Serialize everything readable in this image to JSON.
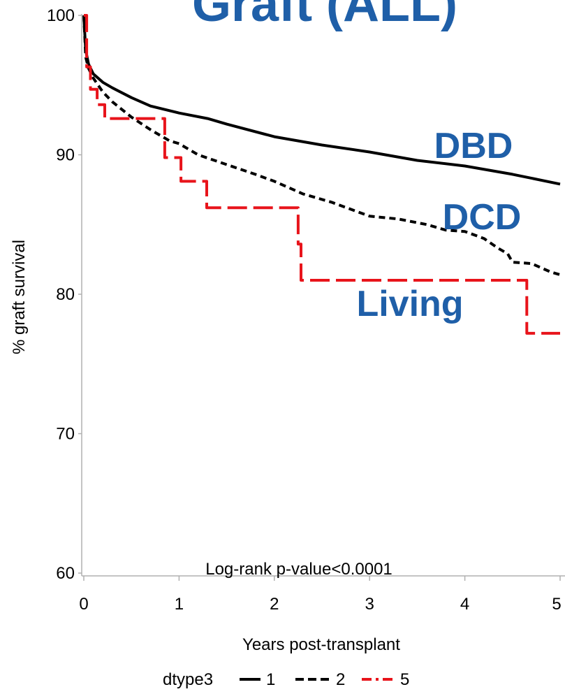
{
  "chart_data": {
    "type": "line",
    "title": "Graft (ALL)",
    "xlabel": "Years post-transplant",
    "ylabel": "% graft survival",
    "xlim": [
      0,
      5
    ],
    "ylim": [
      60,
      100
    ],
    "x_ticks": [
      "0",
      "1",
      "2",
      "3",
      "4",
      "5"
    ],
    "y_ticks": [
      "60",
      "70",
      "80",
      "90",
      "100"
    ],
    "annotation": "Log-rank p-value<0.0001",
    "legend": {
      "title": "dtype3",
      "position": "bottom",
      "items": [
        "1",
        "2",
        "5"
      ]
    },
    "colors": {
      "title": "#1F5FA8",
      "series_label": "#1F5FA8",
      "series_1": "#000000",
      "series_2": "#000000",
      "series_5": "#E8141B"
    },
    "series": [
      {
        "name": "1",
        "label": "DBD",
        "line_style": "solid",
        "step": false,
        "x": [
          0,
          0.02,
          0.05,
          0.1,
          0.2,
          0.3,
          0.5,
          0.7,
          1.0,
          1.3,
          1.5,
          2.0,
          2.5,
          3.0,
          3.5,
          4.0,
          4.5,
          5.0
        ],
        "y": [
          100,
          97.5,
          96.5,
          95.8,
          95.2,
          94.8,
          94.1,
          93.5,
          93.0,
          92.6,
          92.2,
          91.3,
          90.7,
          90.2,
          89.6,
          89.2,
          88.6,
          87.9
        ]
      },
      {
        "name": "2",
        "label": "DCD",
        "line_style": "dashed",
        "step": false,
        "x": [
          0,
          0.02,
          0.05,
          0.1,
          0.2,
          0.3,
          0.5,
          0.7,
          0.9,
          1.0,
          1.2,
          1.5,
          1.8,
          2.0,
          2.3,
          2.6,
          3.0,
          3.3,
          3.6,
          3.8,
          4.0,
          4.2,
          4.35,
          4.45,
          4.5,
          4.7,
          4.9,
          5.0
        ],
        "y": [
          100,
          97.0,
          96.2,
          95.5,
          94.5,
          93.8,
          92.7,
          91.8,
          91.0,
          90.8,
          90.0,
          89.3,
          88.6,
          88.1,
          87.2,
          86.6,
          85.6,
          85.4,
          85.0,
          84.6,
          84.5,
          84.0,
          83.3,
          82.9,
          82.3,
          82.2,
          81.6,
          81.4
        ]
      },
      {
        "name": "5",
        "label": "Living",
        "line_style": "dashed",
        "step": true,
        "x": [
          0,
          0.03,
          0.07,
          0.14,
          0.22,
          0.85,
          1.02,
          1.29,
          2.25,
          2.28,
          4.65,
          5.0
        ],
        "y": [
          100,
          96.3,
          94.7,
          93.6,
          92.6,
          89.8,
          88.1,
          86.2,
          83.6,
          81.0,
          77.2,
          77.2
        ]
      }
    ]
  }
}
